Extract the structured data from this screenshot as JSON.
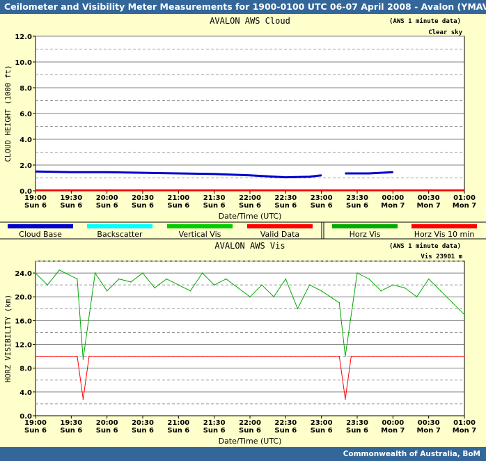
{
  "header": {
    "title": "Ceilometer and Visibility Meter Measurements for 1900-0100 UTC  06-07 April 2008 - Avalon (YMAV)"
  },
  "footer": {
    "credit": "Commonwealth of  Australia, BoM"
  },
  "legend": {
    "items": [
      {
        "label": "Cloud Base",
        "color": "#0000cc"
      },
      {
        "label": "Backscatter",
        "color": "#00ffff"
      },
      {
        "label": "Vertical Vis",
        "color": "#00cc00"
      },
      {
        "label": "Valid Data",
        "color": "#ff0000"
      },
      {
        "label": "Horz Vis",
        "color": "#00aa00"
      },
      {
        "label": "Horz Vis 10 min",
        "color": "#ff0000"
      }
    ]
  },
  "x_ticks": [
    {
      "time": "19:00",
      "day": "Sun 6"
    },
    {
      "time": "19:30",
      "day": "Sun 6"
    },
    {
      "time": "20:00",
      "day": "Sun 6"
    },
    {
      "time": "20:30",
      "day": "Sun 6"
    },
    {
      "time": "21:00",
      "day": "Sun 6"
    },
    {
      "time": "21:30",
      "day": "Sun 6"
    },
    {
      "time": "22:00",
      "day": "Sun 6"
    },
    {
      "time": "22:30",
      "day": "Sun 6"
    },
    {
      "time": "23:00",
      "day": "Sun 6"
    },
    {
      "time": "23:30",
      "day": "Sun 6"
    },
    {
      "time": "00:00",
      "day": "Mon 7"
    },
    {
      "time": "00:30",
      "day": "Mon 7"
    },
    {
      "time": "01:00",
      "day": "Mon 7"
    }
  ],
  "chart_data": [
    {
      "type": "line",
      "title": "AVALON AWS Cloud",
      "note": "(AWS 1 minute data)",
      "status": "Clear sky",
      "xlabel": "Date/Time (UTC)",
      "ylabel": "CLOUD HEIGHT (1000 ft)",
      "ylim": [
        0,
        12
      ],
      "xlim": [
        "19:00",
        "01:00"
      ],
      "y_ticks": [
        "0.0",
        "2.0",
        "4.0",
        "6.0",
        "8.0",
        "10.0",
        "12.0"
      ],
      "series": [
        {
          "name": "Cloud Base",
          "color": "#0000cc",
          "x": [
            "19:00",
            "19:30",
            "20:00",
            "20:30",
            "21:00",
            "21:30",
            "22:00",
            "22:10",
            "22:30",
            "22:50",
            "23:00",
            "23:10",
            "23:20",
            "23:40",
            "00:00"
          ],
          "y": [
            1.5,
            1.45,
            1.45,
            1.4,
            1.35,
            1.3,
            1.2,
            1.15,
            1.05,
            1.1,
            1.2,
            null,
            1.35,
            1.35,
            1.45
          ]
        }
      ]
    },
    {
      "type": "line",
      "title": "AVALON AWS Vis",
      "note": "(AWS 1 minute data)",
      "status": "Vis 23901 m",
      "xlabel": "Date/Time (UTC)",
      "ylabel": "HORZ VISIBILITY (km)",
      "ylim": [
        0,
        26
      ],
      "xlim": [
        "19:00",
        "01:00"
      ],
      "y_ticks": [
        "0.0",
        "4.0",
        "8.0",
        "12.0",
        "16.0",
        "20.0",
        "24.0"
      ],
      "series": [
        {
          "name": "Horz Vis",
          "color": "#00aa00",
          "x": [
            "19:00",
            "19:10",
            "19:20",
            "19:35",
            "19:40",
            "19:50",
            "20:00",
            "20:10",
            "20:20",
            "20:30",
            "20:40",
            "20:50",
            "21:00",
            "21:10",
            "21:20",
            "21:30",
            "21:40",
            "21:50",
            "22:00",
            "22:10",
            "22:20",
            "22:30",
            "22:40",
            "22:50",
            "23:00",
            "23:15",
            "23:20",
            "23:30",
            "23:40",
            "23:50",
            "00:00",
            "00:10",
            "00:20",
            "00:30",
            "00:40",
            "00:50",
            "01:00"
          ],
          "y": [
            24,
            22,
            24.5,
            23,
            9.5,
            24,
            21,
            23,
            22.5,
            24,
            21.5,
            23,
            22,
            21,
            24,
            22,
            23,
            21.5,
            20,
            22,
            20,
            23,
            18,
            22,
            21,
            19,
            10,
            24,
            23,
            21,
            22,
            21.5,
            20,
            23,
            21,
            19,
            17
          ]
        },
        {
          "name": "Horz Vis 10 min",
          "color": "#ff0000",
          "x": [
            "19:00",
            "19:35",
            "19:40",
            "19:45",
            "23:15",
            "23:20",
            "23:25",
            "01:00"
          ],
          "y": [
            10,
            10,
            2.8,
            10,
            10,
            2.8,
            10,
            10
          ]
        }
      ]
    }
  ]
}
